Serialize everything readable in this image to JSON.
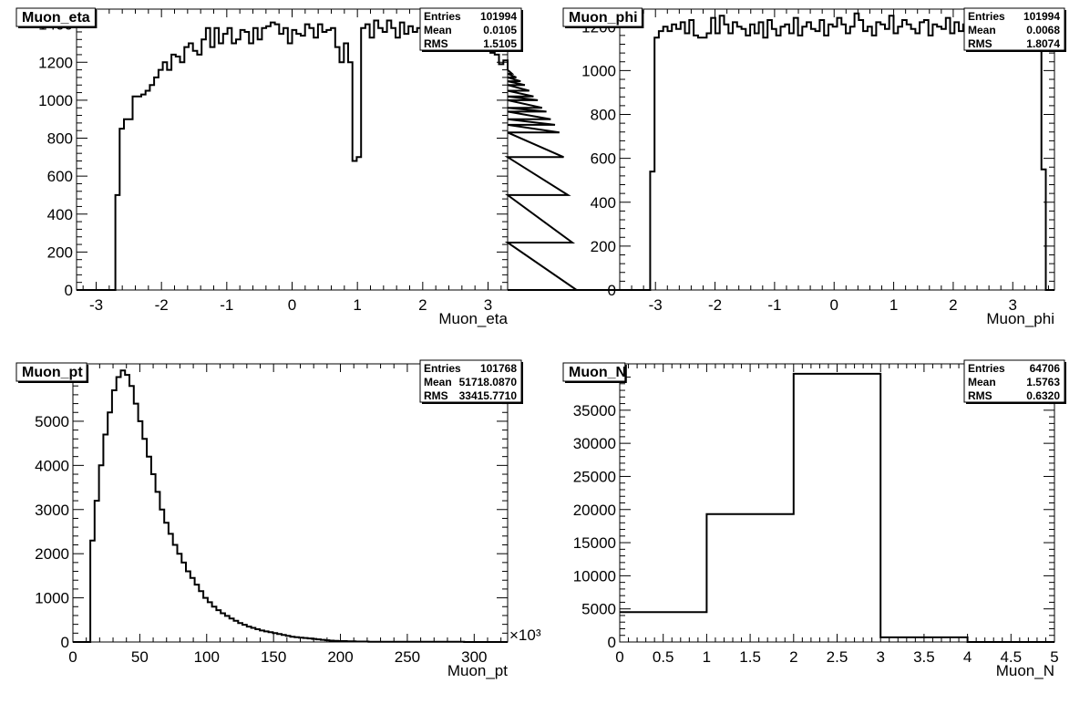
{
  "chart_data": [
    {
      "type": "bar",
      "title": "Muon_eta",
      "xlabel": "Muon_eta",
      "ylabel": "",
      "xlim": [
        -3.3,
        3.3
      ],
      "ylim": [
        0,
        1480
      ],
      "x_ticks": [
        -3,
        -2,
        -1,
        0,
        1,
        2,
        3
      ],
      "y_ticks": [
        0,
        200,
        400,
        600,
        800,
        1000,
        1200,
        1400
      ],
      "x_exponent_label": "",
      "stats": {
        "entries_label": "Entries",
        "entries": "101994",
        "mean_label": "Mean",
        "mean": "0.0105",
        "rms_label": "RMS",
        "rms": "1.5105"
      },
      "bin_edges_start": -3.3,
      "bin_width": 0.066,
      "values": [
        0,
        0,
        0,
        0,
        0,
        0,
        0,
        0,
        0,
        500,
        850,
        900,
        900,
        1020,
        1020,
        1030,
        1050,
        1080,
        1120,
        1160,
        1200,
        1160,
        1240,
        1230,
        1200,
        1280,
        1300,
        1260,
        1240,
        1320,
        1380,
        1280,
        1380,
        1300,
        1350,
        1380,
        1300,
        1320,
        1370,
        1360,
        1300,
        1380,
        1320,
        1380,
        1390,
        1410,
        1400,
        1350,
        1380,
        1300,
        1370,
        1350,
        1340,
        1400,
        1380,
        1330,
        1400,
        1360,
        1370,
        1380,
        1280,
        1200,
        1300,
        1200,
        680,
        700,
        1380,
        1400,
        1330,
        1420,
        1380,
        1360,
        1420,
        1380,
        1330,
        1410,
        1350,
        1390,
        1360,
        1380,
        1340,
        1360,
        1340,
        1370,
        1350,
        1380,
        1350,
        1360,
        1310,
        1370,
        1330,
        1340,
        1320,
        1330,
        1300,
        1310,
        1250,
        1240,
        1190,
        1210,
        1160,
        1140,
        1120,
        1100,
        1080,
        1050,
        1020,
        1000,
        960,
        940,
        900,
        870,
        830,
        700,
        500,
        250,
        0,
        0,
        0,
        0,
        0,
        0,
        0,
        0,
        0,
        0,
        0,
        0
      ]
    },
    {
      "type": "bar",
      "title": "Muon_phi",
      "xlabel": "Muon_phi",
      "ylabel": "",
      "xlim": [
        -3.6,
        3.7
      ],
      "ylim": [
        0,
        1280
      ],
      "x_ticks": [
        -3,
        -2,
        -1,
        0,
        1,
        2,
        3
      ],
      "y_ticks": [
        0,
        200,
        400,
        600,
        800,
        1000,
        1200
      ],
      "x_exponent_label": "",
      "stats": {
        "entries_label": "Entries",
        "entries": "101994",
        "mean_label": "Mean",
        "mean": "0.0068",
        "rms_label": "RMS",
        "rms": "1.8074"
      },
      "bin_edges_start": -3.6,
      "bin_width": 0.073,
      "values": [
        0,
        0,
        0,
        0,
        0,
        0,
        0,
        540,
        1150,
        1180,
        1200,
        1180,
        1210,
        1190,
        1220,
        1170,
        1230,
        1160,
        1150,
        1150,
        1170,
        1240,
        1170,
        1250,
        1210,
        1170,
        1220,
        1200,
        1190,
        1160,
        1210,
        1170,
        1220,
        1150,
        1230,
        1190,
        1160,
        1200,
        1210,
        1170,
        1240,
        1160,
        1200,
        1220,
        1190,
        1180,
        1230,
        1160,
        1210,
        1200,
        1240,
        1210,
        1170,
        1200,
        1260,
        1230,
        1180,
        1200,
        1160,
        1220,
        1210,
        1190,
        1250,
        1170,
        1200,
        1230,
        1210,
        1190,
        1170,
        1220,
        1230,
        1160,
        1210,
        1200,
        1190,
        1240,
        1170,
        1220,
        1180,
        1210,
        1250,
        1170,
        1220,
        1150,
        1230,
        1200,
        1180,
        1260,
        1170,
        1210,
        1190,
        1240,
        1170,
        1200,
        1220,
        1180,
        1200,
        550,
        0,
        0
      ]
    },
    {
      "type": "bar",
      "title": "Muon_pt",
      "xlabel": "Muon_pt",
      "ylabel": "",
      "xlim": [
        0,
        325
      ],
      "ylim": [
        0,
        6300
      ],
      "x_ticks": [
        0,
        50,
        100,
        150,
        200,
        250,
        300
      ],
      "y_ticks": [
        0,
        1000,
        2000,
        3000,
        4000,
        5000,
        6000
      ],
      "x_exponent_label": "×10³",
      "stats": {
        "entries_label": "Entries",
        "entries": "101768",
        "mean_label": "Mean",
        "mean": "51718.0870",
        "rms_label": "RMS",
        "rms": "33415.7710"
      },
      "bin_edges_start": 0,
      "bin_width": 3.25,
      "values": [
        0,
        0,
        0,
        0,
        2300,
        3200,
        4000,
        4700,
        5200,
        5700,
        6000,
        6150,
        6050,
        5800,
        5400,
        5000,
        4600,
        4200,
        3800,
        3400,
        3000,
        2700,
        2450,
        2200,
        2000,
        1800,
        1600,
        1450,
        1300,
        1150,
        1000,
        900,
        800,
        720,
        650,
        590,
        530,
        480,
        430,
        390,
        350,
        320,
        290,
        260,
        240,
        220,
        200,
        180,
        160,
        140,
        120,
        110,
        100,
        90,
        80,
        70,
        60,
        50,
        40,
        30,
        25,
        20,
        20,
        15,
        15,
        10,
        10,
        10,
        5,
        5,
        5,
        5,
        5,
        5,
        5,
        5,
        5,
        5,
        5,
        5,
        5,
        5,
        5,
        5,
        5,
        5,
        5,
        5,
        5,
        5,
        0,
        0,
        0,
        0,
        0,
        0,
        0,
        0,
        0,
        0
      ]
    },
    {
      "type": "bar",
      "title": "Muon_N",
      "xlabel": "Muon_N",
      "ylabel": "",
      "xlim": [
        0,
        5
      ],
      "ylim": [
        0,
        42000
      ],
      "x_ticks": [
        0,
        0.5,
        1,
        1.5,
        2,
        2.5,
        3,
        3.5,
        4,
        4.5,
        5
      ],
      "y_ticks": [
        0,
        5000,
        10000,
        15000,
        20000,
        25000,
        30000,
        35000,
        40000
      ],
      "x_exponent_label": "",
      "stats": {
        "entries_label": "Entries",
        "entries": "64706",
        "mean_label": "Mean",
        "mean": "1.5763",
        "rms_label": "RMS",
        "rms": "0.6320"
      },
      "bin_edges_start": 0,
      "bin_width": 1,
      "values": [
        4500,
        19300,
        40500,
        700,
        0
      ]
    }
  ]
}
